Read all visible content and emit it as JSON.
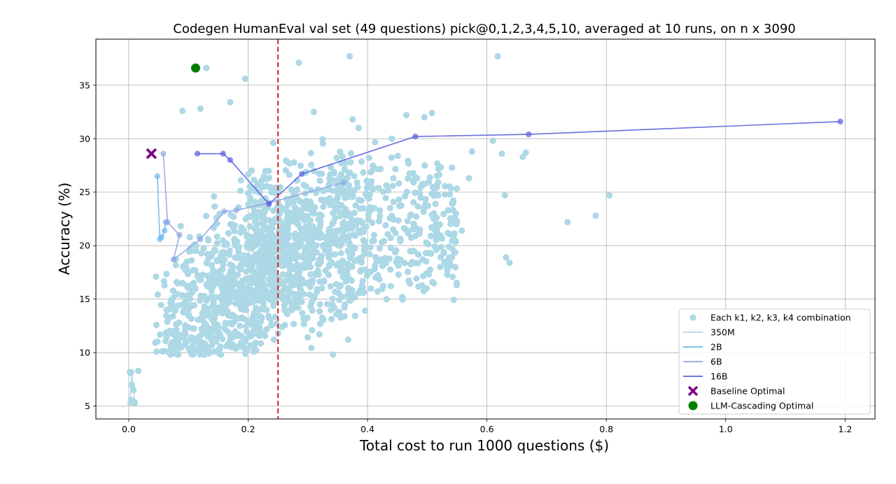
{
  "chart_data": {
    "type": "scatter",
    "title": "Codegen HumanEval val set (49 questions) pick@0,1,2,3,4,5,10, averaged at 10 runs, on n x 3090",
    "xlabel": "Total cost to run 1000 questions ($)",
    "ylabel": "Accuracy (%)",
    "xlim": [
      -0.055,
      1.25
    ],
    "ylim": [
      3.8,
      39.3
    ],
    "xticks": [
      0.0,
      0.2,
      0.4,
      0.6,
      0.8,
      1.0,
      1.2
    ],
    "xtick_labels": [
      "0.0",
      "0.2",
      "0.4",
      "0.6",
      "0.8",
      "1.0",
      "1.2"
    ],
    "yticks": [
      5,
      10,
      15,
      20,
      25,
      30,
      35
    ],
    "ytick_labels": [
      "5",
      "10",
      "15",
      "20",
      "25",
      "30",
      "35"
    ],
    "grid": true,
    "legend_position": "lower-right",
    "threshold_line": {
      "x": 0.25,
      "color": "#d62728",
      "style": "dashed"
    },
    "scatter_series": {
      "name": "Each k1, k2, k3, k4 combination",
      "color": "#add8e6",
      "cluster_approximation": {
        "count": 1700,
        "x_range": [
          0.0,
          0.58
        ],
        "y_range": [
          5.2,
          37.7
        ]
      },
      "outliers": [
        [
          0.13,
          36.6
        ],
        [
          0.195,
          35.6
        ],
        [
          0.285,
          37.1
        ],
        [
          0.37,
          37.7
        ],
        [
          0.618,
          37.7
        ],
        [
          0.17,
          33.4
        ],
        [
          0.09,
          32.6
        ],
        [
          0.12,
          32.8
        ],
        [
          0.31,
          32.5
        ],
        [
          0.465,
          32.2
        ],
        [
          0.495,
          32.0
        ],
        [
          0.508,
          32.4
        ],
        [
          0.375,
          31.8
        ],
        [
          0.385,
          31.0
        ],
        [
          0.61,
          29.8
        ],
        [
          0.625,
          28.6
        ],
        [
          0.66,
          28.3
        ],
        [
          0.665,
          28.7
        ],
        [
          0.575,
          28.8
        ],
        [
          0.57,
          26.3
        ],
        [
          0.63,
          24.7
        ],
        [
          0.735,
          22.2
        ],
        [
          0.782,
          22.8
        ],
        [
          0.805,
          24.7
        ],
        [
          0.632,
          18.9
        ],
        [
          0.638,
          18.4
        ],
        [
          0.535,
          23.3
        ],
        [
          0.548,
          23.0
        ],
        [
          0.558,
          21.4
        ],
        [
          0.528,
          19.3
        ],
        [
          0.002,
          8.2
        ],
        [
          0.016,
          8.3
        ],
        [
          0.005,
          7.0
        ],
        [
          0.008,
          6.5
        ],
        [
          0.004,
          5.6
        ],
        [
          0.01,
          5.3
        ],
        [
          0.006,
          5.4
        ],
        [
          0.003,
          8.1
        ]
      ]
    },
    "line_series": [
      {
        "name": "350M",
        "color": "#add8e6",
        "points": [
          [
            0.002,
            5.3
          ],
          [
            0.005,
            8.2
          ],
          [
            0.008,
            6.6
          ],
          [
            0.01,
            5.4
          ]
        ]
      },
      {
        "name": "2B",
        "color": "#6cb8f0",
        "points": [
          [
            0.048,
            26.5
          ],
          [
            0.052,
            20.6
          ],
          [
            0.055,
            20.8
          ],
          [
            0.06,
            21.4
          ],
          [
            0.062,
            22.2
          ]
        ]
      },
      {
        "name": "6B",
        "color": "#8fa5e6",
        "points": [
          [
            0.058,
            28.6
          ],
          [
            0.065,
            22.2
          ],
          [
            0.085,
            21.0
          ],
          [
            0.075,
            18.7
          ],
          [
            0.12,
            20.6
          ],
          [
            0.16,
            23.2
          ],
          [
            0.18,
            23.3
          ],
          [
            0.235,
            24.0
          ],
          [
            0.36,
            25.9
          ]
        ]
      },
      {
        "name": "16B",
        "color": "#5a5fe0",
        "points": [
          [
            0.115,
            28.6
          ],
          [
            0.158,
            28.6
          ],
          [
            0.17,
            28.0
          ],
          [
            0.235,
            23.9
          ],
          [
            0.29,
            26.7
          ],
          [
            0.48,
            30.2
          ],
          [
            0.67,
            30.4
          ],
          [
            1.192,
            31.6
          ]
        ]
      }
    ],
    "baseline_optimal": {
      "name": "Baseline Optimal",
      "x": 0.038,
      "y": 28.6,
      "color": "#800080"
    },
    "cascading_optimal": {
      "name": "LLM-Cascading Optimal",
      "x": 0.112,
      "y": 36.6,
      "color": "#008000"
    },
    "legend": [
      {
        "label": "Each k1, k2, k3, k4 combination",
        "kind": "dot",
        "color": "#add8e6"
      },
      {
        "label": "350M",
        "kind": "line",
        "color": "#add8e6"
      },
      {
        "label": "2B",
        "kind": "line",
        "color": "#6cb8f0"
      },
      {
        "label": "6B",
        "kind": "line",
        "color": "#8fa5e6"
      },
      {
        "label": "16B",
        "kind": "line",
        "color": "#5a5fe0"
      },
      {
        "label": "Baseline Optimal",
        "kind": "x",
        "color": "#800080"
      },
      {
        "label": "LLM-Cascading Optimal",
        "kind": "bigdot",
        "color": "#008000"
      }
    ]
  }
}
